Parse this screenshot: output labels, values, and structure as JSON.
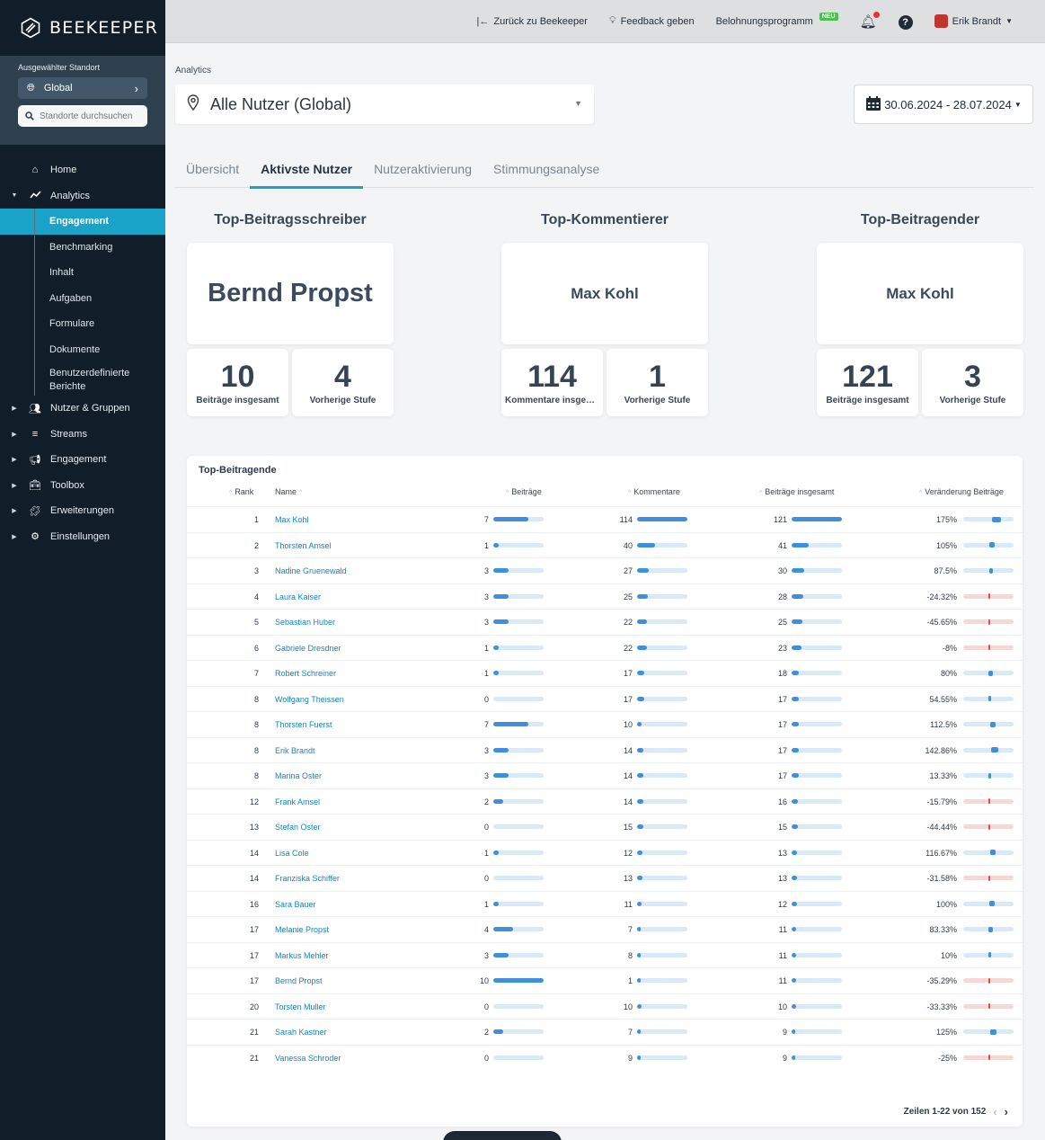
{
  "brand": {
    "name": "BEEKEEPER"
  },
  "location": {
    "title": "Ausgewählter Standort",
    "selected": "Global",
    "search_placeholder": "Standorte durchsuchen"
  },
  "nav": {
    "home": "Home",
    "analytics": "Analytics",
    "sub": [
      "Engagement",
      "Benchmarking",
      "Inhalt",
      "Aufgaben",
      "Formulare",
      "Dokumente",
      "Benutzerdefinierte Berichte"
    ],
    "items": [
      "Nutzer & Gruppen",
      "Streams",
      "Engagement",
      "Toolbox",
      "Erweiterungen",
      "Einstellungen"
    ]
  },
  "topbar": {
    "back": "Zurück zu Beekeeper",
    "feedback": "Feedback geben",
    "rewards": "Belohnungsprogramm",
    "rewards_badge": "NEU",
    "user": "Erik Brandt"
  },
  "main": {
    "breadcrumb": "Analytics",
    "user_filter": "Alle Nutzer (Global)",
    "date_range": "30.06.2024 - 28.07.2024",
    "tabs": [
      "Übersicht",
      "Aktivste Nutzer",
      "Nutzeraktivierung",
      "Stimmungsanalyse"
    ]
  },
  "highlights": [
    {
      "title": "Top-Beitragsschreiber",
      "name": "Bernd Propst",
      "stat1_value": "10",
      "stat1_label": "Beiträge insgesamt",
      "stat2_value": "4",
      "stat2_label": "Vorherige Stufe"
    },
    {
      "title": "Top-Kommentierer",
      "name": "Max Kohl",
      "stat1_value": "114",
      "stat1_label": "Kommentare insgesamt",
      "stat2_value": "1",
      "stat2_label": "Vorherige Stufe"
    },
    {
      "title": "Top-Beitragender",
      "name": "Max Kohl",
      "stat1_value": "121",
      "stat1_label": "Beiträge insgesamt",
      "stat2_value": "3",
      "stat2_label": "Vorherige Stufe"
    }
  ],
  "table": {
    "title": "Top-Beitragende",
    "headers": {
      "rank": "Rank",
      "name": "Name",
      "posts": "Beiträge",
      "comments": "Kommentare",
      "total": "Beiträge insgesamt",
      "change": "Veränderung Beiträge"
    },
    "rows": [
      {
        "rank": "1",
        "name": "Max Kohl",
        "posts": 7,
        "comments": 114,
        "total": 121,
        "change": "175%",
        "change_value": 175
      },
      {
        "rank": "2",
        "name": "Thorsten Amsel",
        "posts": 1,
        "comments": 40,
        "total": 41,
        "change": "105%",
        "change_value": 105
      },
      {
        "rank": "3",
        "name": "Nadine Gruenewald",
        "posts": 3,
        "comments": 27,
        "total": 30,
        "change": "87.5%",
        "change_value": 87.5
      },
      {
        "rank": "4",
        "name": "Laura Kaiser",
        "posts": 3,
        "comments": 25,
        "total": 28,
        "change": "-24.32%",
        "change_value": -24.32
      },
      {
        "rank": "5",
        "name": "Sebastian Huber",
        "posts": 3,
        "comments": 22,
        "total": 25,
        "change": "-45.65%",
        "change_value": -45.65
      },
      {
        "rank": "6",
        "name": "Gabriele Dresdner",
        "posts": 1,
        "comments": 22,
        "total": 23,
        "change": "-8%",
        "change_value": -8
      },
      {
        "rank": "7",
        "name": "Robert Schreiner",
        "posts": 1,
        "comments": 17,
        "total": 18,
        "change": "80%",
        "change_value": 80
      },
      {
        "rank": "8",
        "name": "Wolfgang Theissen",
        "posts": 0,
        "comments": 17,
        "total": 17,
        "change": "54.55%",
        "change_value": 54.55
      },
      {
        "rank": "8",
        "name": "Thorsten Fuerst",
        "posts": 7,
        "comments": 10,
        "total": 17,
        "change": "112.5%",
        "change_value": 112.5
      },
      {
        "rank": "8",
        "name": "Erik Brandt",
        "posts": 3,
        "comments": 14,
        "total": 17,
        "change": "142.86%",
        "change_value": 142.86
      },
      {
        "rank": "8",
        "name": "Marina Oster",
        "posts": 3,
        "comments": 14,
        "total": 17,
        "change": "13.33%",
        "change_value": 13.33
      },
      {
        "rank": "12",
        "name": "Frank Amsel",
        "posts": 2,
        "comments": 14,
        "total": 16,
        "change": "-15.79%",
        "change_value": -15.79
      },
      {
        "rank": "13",
        "name": "Stefan Oster",
        "posts": 0,
        "comments": 15,
        "total": 15,
        "change": "-44.44%",
        "change_value": -44.44
      },
      {
        "rank": "14",
        "name": "Lisa Cole",
        "posts": 1,
        "comments": 12,
        "total": 13,
        "change": "116.67%",
        "change_value": 116.67
      },
      {
        "rank": "14",
        "name": "Franziska Schiffer",
        "posts": 0,
        "comments": 13,
        "total": 13,
        "change": "-31.58%",
        "change_value": -31.58
      },
      {
        "rank": "16",
        "name": "Sara Bauer",
        "posts": 1,
        "comments": 11,
        "total": 12,
        "change": "100%",
        "change_value": 100
      },
      {
        "rank": "17",
        "name": "Melanie Propst",
        "posts": 4,
        "comments": 7,
        "total": 11,
        "change": "83.33%",
        "change_value": 83.33
      },
      {
        "rank": "17",
        "name": "Markus Mehler",
        "posts": 3,
        "comments": 8,
        "total": 11,
        "change": "10%",
        "change_value": 10
      },
      {
        "rank": "17",
        "name": "Bernd Propst",
        "posts": 10,
        "comments": 1,
        "total": 11,
        "change": "-35.29%",
        "change_value": -35.29
      },
      {
        "rank": "20",
        "name": "Torsten Muller",
        "posts": 0,
        "comments": 10,
        "total": 10,
        "change": "-33.33%",
        "change_value": -33.33
      },
      {
        "rank": "21",
        "name": "Sarah Kastner",
        "posts": 2,
        "comments": 7,
        "total": 9,
        "change": "125%",
        "change_value": 125
      },
      {
        "rank": "21",
        "name": "Vanessa Schroder",
        "posts": 0,
        "comments": 9,
        "total": 9,
        "change": "-25%",
        "change_value": -25
      }
    ],
    "pagination": "Zeilen 1-22 von 152"
  },
  "colors": {
    "accent": "#1aa3c8",
    "bar": "#3f8fdc",
    "negative": "#e04f4f",
    "sidebar": "#111e29"
  },
  "icons": {
    "logo": "hexagon-logo-icon",
    "globe": "globe-icon",
    "search": "search-icon",
    "home": "home-icon",
    "analytics": "chart-line-icon",
    "calendar": "calendar-icon",
    "pin": "location-pin-icon"
  }
}
